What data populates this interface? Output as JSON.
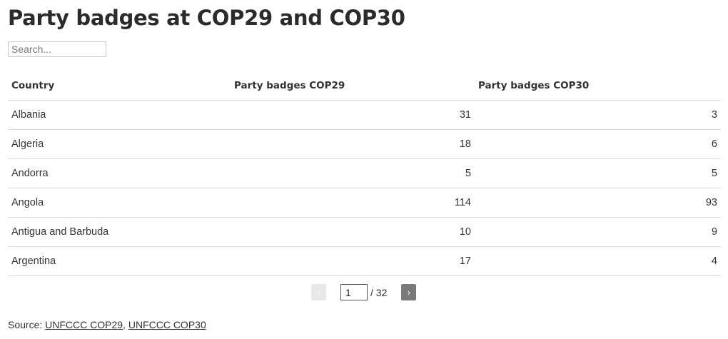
{
  "title": "Party badges at COP29 and COP30",
  "search": {
    "placeholder": "Search...",
    "value": ""
  },
  "table": {
    "headers": [
      "Country",
      "Party badges COP29",
      "Party badges COP30"
    ],
    "rows": [
      [
        "Albania",
        "31",
        "3"
      ],
      [
        "Algeria",
        "18",
        "6"
      ],
      [
        "Andorra",
        "5",
        "5"
      ],
      [
        "Angola",
        "114",
        "93"
      ],
      [
        "Antigua and Barbuda",
        "10",
        "9"
      ],
      [
        "Argentina",
        "17",
        "4"
      ]
    ]
  },
  "pagination": {
    "prev_icon": "‹",
    "next_icon": "›",
    "current_page": "1",
    "total_label": "/ 32"
  },
  "source": {
    "label": "Source:",
    "links": [
      {
        "text": "UNFCCC COP29"
      },
      {
        "text": "UNFCCC COP30"
      }
    ],
    "separator": ","
  }
}
